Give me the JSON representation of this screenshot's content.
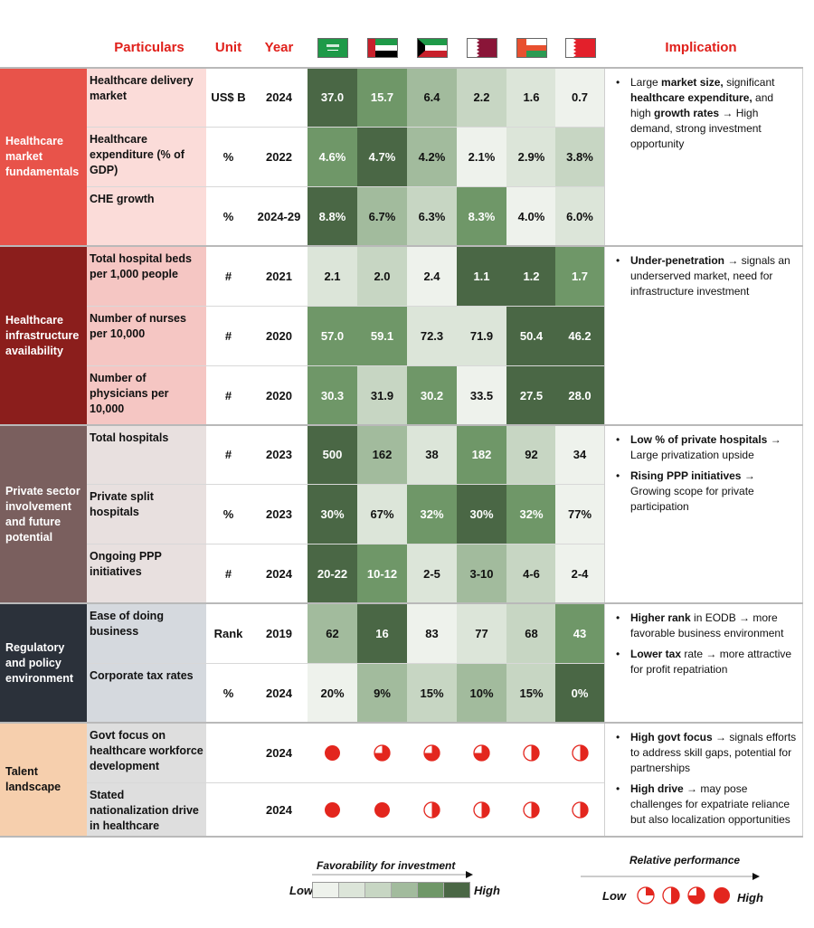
{
  "header": {
    "particulars": "Particulars",
    "unit": "Unit",
    "year": "Year",
    "implication": "Implication"
  },
  "countries": [
    {
      "flag": "saudi-arabia-flag"
    },
    {
      "flag": "uae-flag"
    },
    {
      "flag": "kuwait-flag"
    },
    {
      "flag": "qatar-flag"
    },
    {
      "flag": "oman-flag"
    },
    {
      "flag": "bahrain-flag"
    }
  ],
  "colors": {
    "header_red": "#e0201b",
    "scale": [
      "#eef2ec",
      "#dce5d9",
      "#c7d6c3",
      "#a2bb9d",
      "#6f9768",
      "#4a6745"
    ],
    "harvey": "#e3261e"
  },
  "chart_data": {
    "type": "heatmap",
    "groups": [
      {
        "name": "Healthcare market fundamentals",
        "color": "#e8534a",
        "rowbg": "#fbdcd9",
        "implication": [
          [
            {
              "t": "Large "
            },
            {
              "t": "market size,",
              "b": true
            },
            {
              "t": " significant "
            },
            {
              "t": "healthcare expenditure,",
              "b": true
            },
            {
              "t": " and high "
            },
            {
              "t": "growth rates",
              "b": true
            },
            {
              "t": " → High demand, strong investment opportunity"
            }
          ]
        ],
        "rows": [
          {
            "particular": "Healthcare delivery market",
            "unit": "US$ B",
            "year": "2024",
            "values": [
              "37.0",
              "15.7",
              "6.4",
              "2.2",
              "1.6",
              "0.7"
            ],
            "levels": [
              6,
              5,
              4,
              3,
              2,
              1
            ]
          },
          {
            "particular": "Healthcare expenditure (% of GDP)",
            "unit": "%",
            "year": "2022",
            "values": [
              "4.6%",
              "4.7%",
              "4.2%",
              "2.1%",
              "2.9%",
              "3.8%"
            ],
            "levels": [
              5,
              6,
              4,
              1,
              2,
              3
            ]
          },
          {
            "particular": "CHE growth",
            "unit": "%",
            "year": "2024-29",
            "values": [
              "8.8%",
              "6.7%",
              "6.3%",
              "8.3%",
              "4.0%",
              "6.0%"
            ],
            "levels": [
              6,
              4,
              3,
              5,
              1,
              2
            ]
          }
        ]
      },
      {
        "name": "Healthcare infrastructure availability",
        "color": "#8b1e1c",
        "rowbg": "#f5c6c3",
        "implication": [
          [
            {
              "t": "Under-penetration",
              "b": true
            },
            {
              "t": " → signals an underserved market, need for infrastructure investment"
            }
          ]
        ],
        "rows": [
          {
            "particular": "Total hospital beds per 1,000 people",
            "unit": "#",
            "year": "2021",
            "values": [
              "2.1",
              "2.0",
              "2.4",
              "1.1",
              "1.2",
              "1.7"
            ],
            "levels": [
              2,
              3,
              1,
              6,
              6,
              5
            ]
          },
          {
            "particular": "Number of nurses per 10,000",
            "unit": "#",
            "year": "2020",
            "values": [
              "57.0",
              "59.1",
              "72.3",
              "71.9",
              "50.4",
              "46.2"
            ],
            "levels": [
              5,
              5,
              2,
              2,
              6,
              6
            ]
          },
          {
            "particular": "Number of physicians  per 10,000",
            "unit": "#",
            "year": "2020",
            "values": [
              "30.3",
              "31.9",
              "30.2",
              "33.5",
              "27.5",
              "28.0"
            ],
            "levels": [
              5,
              3,
              5,
              1,
              6,
              6
            ]
          }
        ]
      },
      {
        "name": "Private sector involvement and future potential",
        "color": "#7a5f5e",
        "rowbg": "#e8e0df",
        "implication": [
          [
            {
              "t": "Low % of private hospitals",
              "b": true
            },
            {
              "t": " → Large privatization upside"
            }
          ],
          [
            {
              "t": "Rising PPP initiatives",
              "b": true
            },
            {
              "t": " → Growing scope for private participation"
            }
          ]
        ],
        "rows": [
          {
            "particular": "Total hospitals",
            "unit": "#",
            "year": "2023",
            "values": [
              "500",
              "162",
              "38",
              "182",
              "92",
              "34"
            ],
            "levels": [
              6,
              4,
              2,
              5,
              3,
              1
            ]
          },
          {
            "particular": "Private split hospitals",
            "unit": "%",
            "year": "2023",
            "values": [
              "30%",
              "67%",
              "32%",
              "30%",
              "32%",
              "77%"
            ],
            "levels": [
              6,
              2,
              5,
              6,
              5,
              1
            ]
          },
          {
            "particular": "Ongoing PPP initiatives",
            "unit": "#",
            "year": "2024",
            "values": [
              "20-22",
              "10-12",
              "2-5",
              "3-10",
              "4-6",
              "2-4"
            ],
            "levels": [
              6,
              5,
              2,
              4,
              3,
              1
            ]
          }
        ]
      },
      {
        "name": "Regulatory and policy environment",
        "color": "#2b313a",
        "rowbg": "#d5d9de",
        "implication": [
          [
            {
              "t": "Higher rank",
              "b": true
            },
            {
              "t": " in EODB → more favorable business environment"
            }
          ],
          [
            {
              "t": "Lower tax",
              "b": true
            },
            {
              "t": " rate → more attractive for profit repatriation"
            }
          ]
        ],
        "rows": [
          {
            "particular": "Ease of doing business",
            "unit": "Rank",
            "year": "2019",
            "values": [
              "62",
              "16",
              "83",
              "77",
              "68",
              "43"
            ],
            "levels": [
              4,
              6,
              1,
              2,
              3,
              5
            ]
          },
          {
            "particular": "Corporate tax rates",
            "unit": "%",
            "year": "2024",
            "values": [
              "20%",
              "9%",
              "15%",
              "10%",
              "15%",
              "0%"
            ],
            "levels": [
              1,
              4,
              3,
              4,
              3,
              6
            ]
          }
        ]
      },
      {
        "name": "Talent landscape",
        "color": "#f6cfad",
        "textcolor": "#111",
        "rowbg": "#dedede",
        "implication": [
          [
            {
              "t": "High govt focus",
              "b": true
            },
            {
              "t": " → signals efforts to address skill gaps, potential for partnerships"
            }
          ],
          [
            {
              "t": "High drive",
              "b": true
            },
            {
              "t": " → may pose challenges for expatriate reliance but also localization opportunities"
            }
          ]
        ],
        "rows": [
          {
            "particular": "Govt focus on healthcare workforce development",
            "unit": "",
            "year": "2024",
            "harvey": [
              1,
              0.75,
              0.75,
              0.75,
              0.5,
              0.5
            ]
          },
          {
            "particular": "Stated nationalization drive in healthcare",
            "unit": "",
            "year": "2024",
            "harvey": [
              1,
              1,
              0.5,
              0.5,
              0.5,
              0.5
            ]
          }
        ]
      }
    ]
  },
  "legend": {
    "favorability": {
      "title": "Favorability for investment",
      "low": "Low",
      "high": "High"
    },
    "performance": {
      "title": "Relative performance",
      "low": "Low",
      "high": "High",
      "levels": [
        0.25,
        0.5,
        0.75,
        1
      ]
    }
  }
}
